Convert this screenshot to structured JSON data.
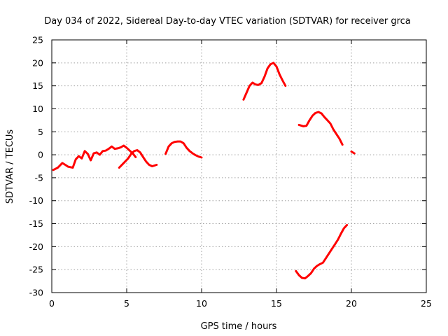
{
  "chart_data": {
    "type": "line",
    "title": "Day 034 of 2022, Sidereal Day-to-day VTEC variation (SDTVAR) for receiver grca",
    "xlabel": "GPS time / hours",
    "ylabel": "SDTVAR / TECUs",
    "xlim": [
      0,
      25
    ],
    "ylim": [
      -30,
      25
    ],
    "xticks": [
      0,
      5,
      10,
      15,
      20,
      25
    ],
    "yticks": [
      -30,
      -25,
      -20,
      -15,
      -10,
      -5,
      0,
      5,
      10,
      15,
      20,
      25
    ],
    "grid": true,
    "legend": "none",
    "color": "#ff0000",
    "series": [
      {
        "segments": [
          {
            "x": [
              0.1,
              0.4,
              0.7,
              0.9,
              1.1,
              1.4,
              1.6,
              1.8,
              2.0,
              2.2,
              2.4,
              2.6,
              2.8,
              3.0,
              3.2,
              3.4,
              3.6,
              3.8,
              4.0,
              4.2,
              4.4,
              4.6,
              4.8,
              5.0,
              5.2,
              5.4,
              5.6
            ],
            "y": [
              -3.3,
              -2.8,
              -1.8,
              -2.2,
              -2.6,
              -2.8,
              -1.0,
              -0.3,
              -0.8,
              0.8,
              0.2,
              -1.2,
              0.3,
              0.5,
              0.0,
              0.8,
              0.9,
              1.3,
              1.8,
              1.3,
              1.4,
              1.6,
              2.0,
              1.5,
              0.9,
              0.3,
              -0.5
            ]
          },
          {
            "x": [
              4.5,
              4.8,
              5.1,
              5.3,
              5.5,
              5.7,
              5.9,
              6.1,
              6.3,
              6.5,
              6.7,
              7.0
            ],
            "y": [
              -2.8,
              -1.8,
              -0.8,
              0.2,
              0.8,
              1.0,
              0.5,
              -0.5,
              -1.5,
              -2.2,
              -2.5,
              -2.2
            ]
          },
          {
            "x": [
              7.6,
              7.8,
              8.0,
              8.2,
              8.4,
              8.6,
              8.8,
              9.0,
              9.2,
              9.4,
              9.6,
              9.8,
              10.0
            ],
            "y": [
              0.2,
              1.8,
              2.5,
              2.8,
              2.9,
              2.9,
              2.5,
              1.5,
              0.8,
              0.3,
              -0.1,
              -0.4,
              -0.6
            ]
          },
          {
            "x": [
              12.8,
              13.0,
              13.2,
              13.4,
              13.6,
              13.8,
              14.0,
              14.2,
              14.4,
              14.6,
              14.8,
              15.0,
              15.2,
              15.4,
              15.6
            ],
            "y": [
              12.0,
              13.5,
              15.0,
              15.7,
              15.3,
              15.2,
              15.6,
              17.0,
              18.8,
              19.7,
              20.0,
              19.2,
              17.5,
              16.2,
              15.0
            ]
          },
          {
            "x": [
              16.5,
              16.8,
              17.0,
              17.2,
              17.4,
              17.6,
              17.8,
              18.0,
              18.2,
              18.4,
              18.6,
              18.8,
              19.0,
              19.2,
              19.4
            ],
            "y": [
              6.5,
              6.2,
              6.3,
              7.5,
              8.5,
              9.1,
              9.3,
              9.0,
              8.2,
              7.5,
              6.8,
              5.5,
              4.5,
              3.5,
              2.2
            ]
          },
          {
            "x": [
              20.0,
              20.2
            ],
            "y": [
              0.7,
              0.3
            ]
          },
          {
            "x": [
              16.3,
              16.5,
              16.7,
              16.9,
              17.1,
              17.3,
              17.5,
              17.7,
              17.9,
              18.1,
              18.3,
              18.5,
              18.7,
              18.9,
              19.1,
              19.3,
              19.5,
              19.7
            ],
            "y": [
              -25.3,
              -26.2,
              -26.8,
              -26.9,
              -26.4,
              -25.8,
              -24.8,
              -24.2,
              -23.8,
              -23.5,
              -22.5,
              -21.5,
              -20.5,
              -19.5,
              -18.5,
              -17.2,
              -16.0,
              -15.3
            ]
          }
        ]
      }
    ]
  }
}
